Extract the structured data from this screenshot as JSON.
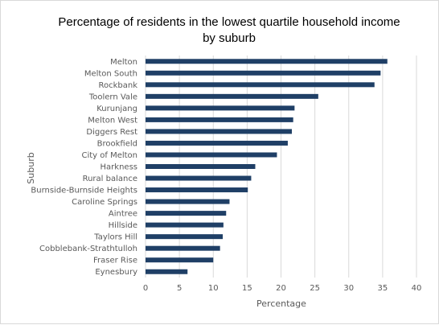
{
  "chart_data": {
    "type": "bar",
    "orientation": "horizontal",
    "title": "Percentage of residents in the lowest quartile household income by suburb",
    "title_lines": [
      "Percentage of residents in the lowest quartile household income",
      "by suburb"
    ],
    "xlabel": "Percentage",
    "ylabel": "Suburb",
    "xlim": [
      0,
      40
    ],
    "xticks": [
      "0",
      "5",
      "10",
      "15",
      "20",
      "25",
      "30",
      "35",
      "40"
    ],
    "grid": "vertical",
    "legend": "none",
    "bar_color": "#1f3f66",
    "categories": [
      "Melton",
      "Melton South",
      "Rockbank",
      "Toolern Vale",
      "Kurunjang",
      "Melton West",
      "Diggers Rest",
      "Brookfield",
      "City of Melton",
      "Harkness",
      "Rural balance",
      "Burnside-Burnside Heights",
      "Caroline Springs",
      "Aintree",
      "Hillside",
      "Taylors Hill",
      "Cobblebank-Strathtulloh",
      "Fraser Rise",
      "Eynesbury"
    ],
    "values": [
      35.7,
      34.7,
      33.8,
      25.5,
      22.0,
      21.8,
      21.6,
      21.0,
      19.4,
      16.2,
      15.6,
      15.1,
      12.4,
      11.9,
      11.5,
      11.4,
      11.0,
      10.0,
      6.2
    ]
  }
}
